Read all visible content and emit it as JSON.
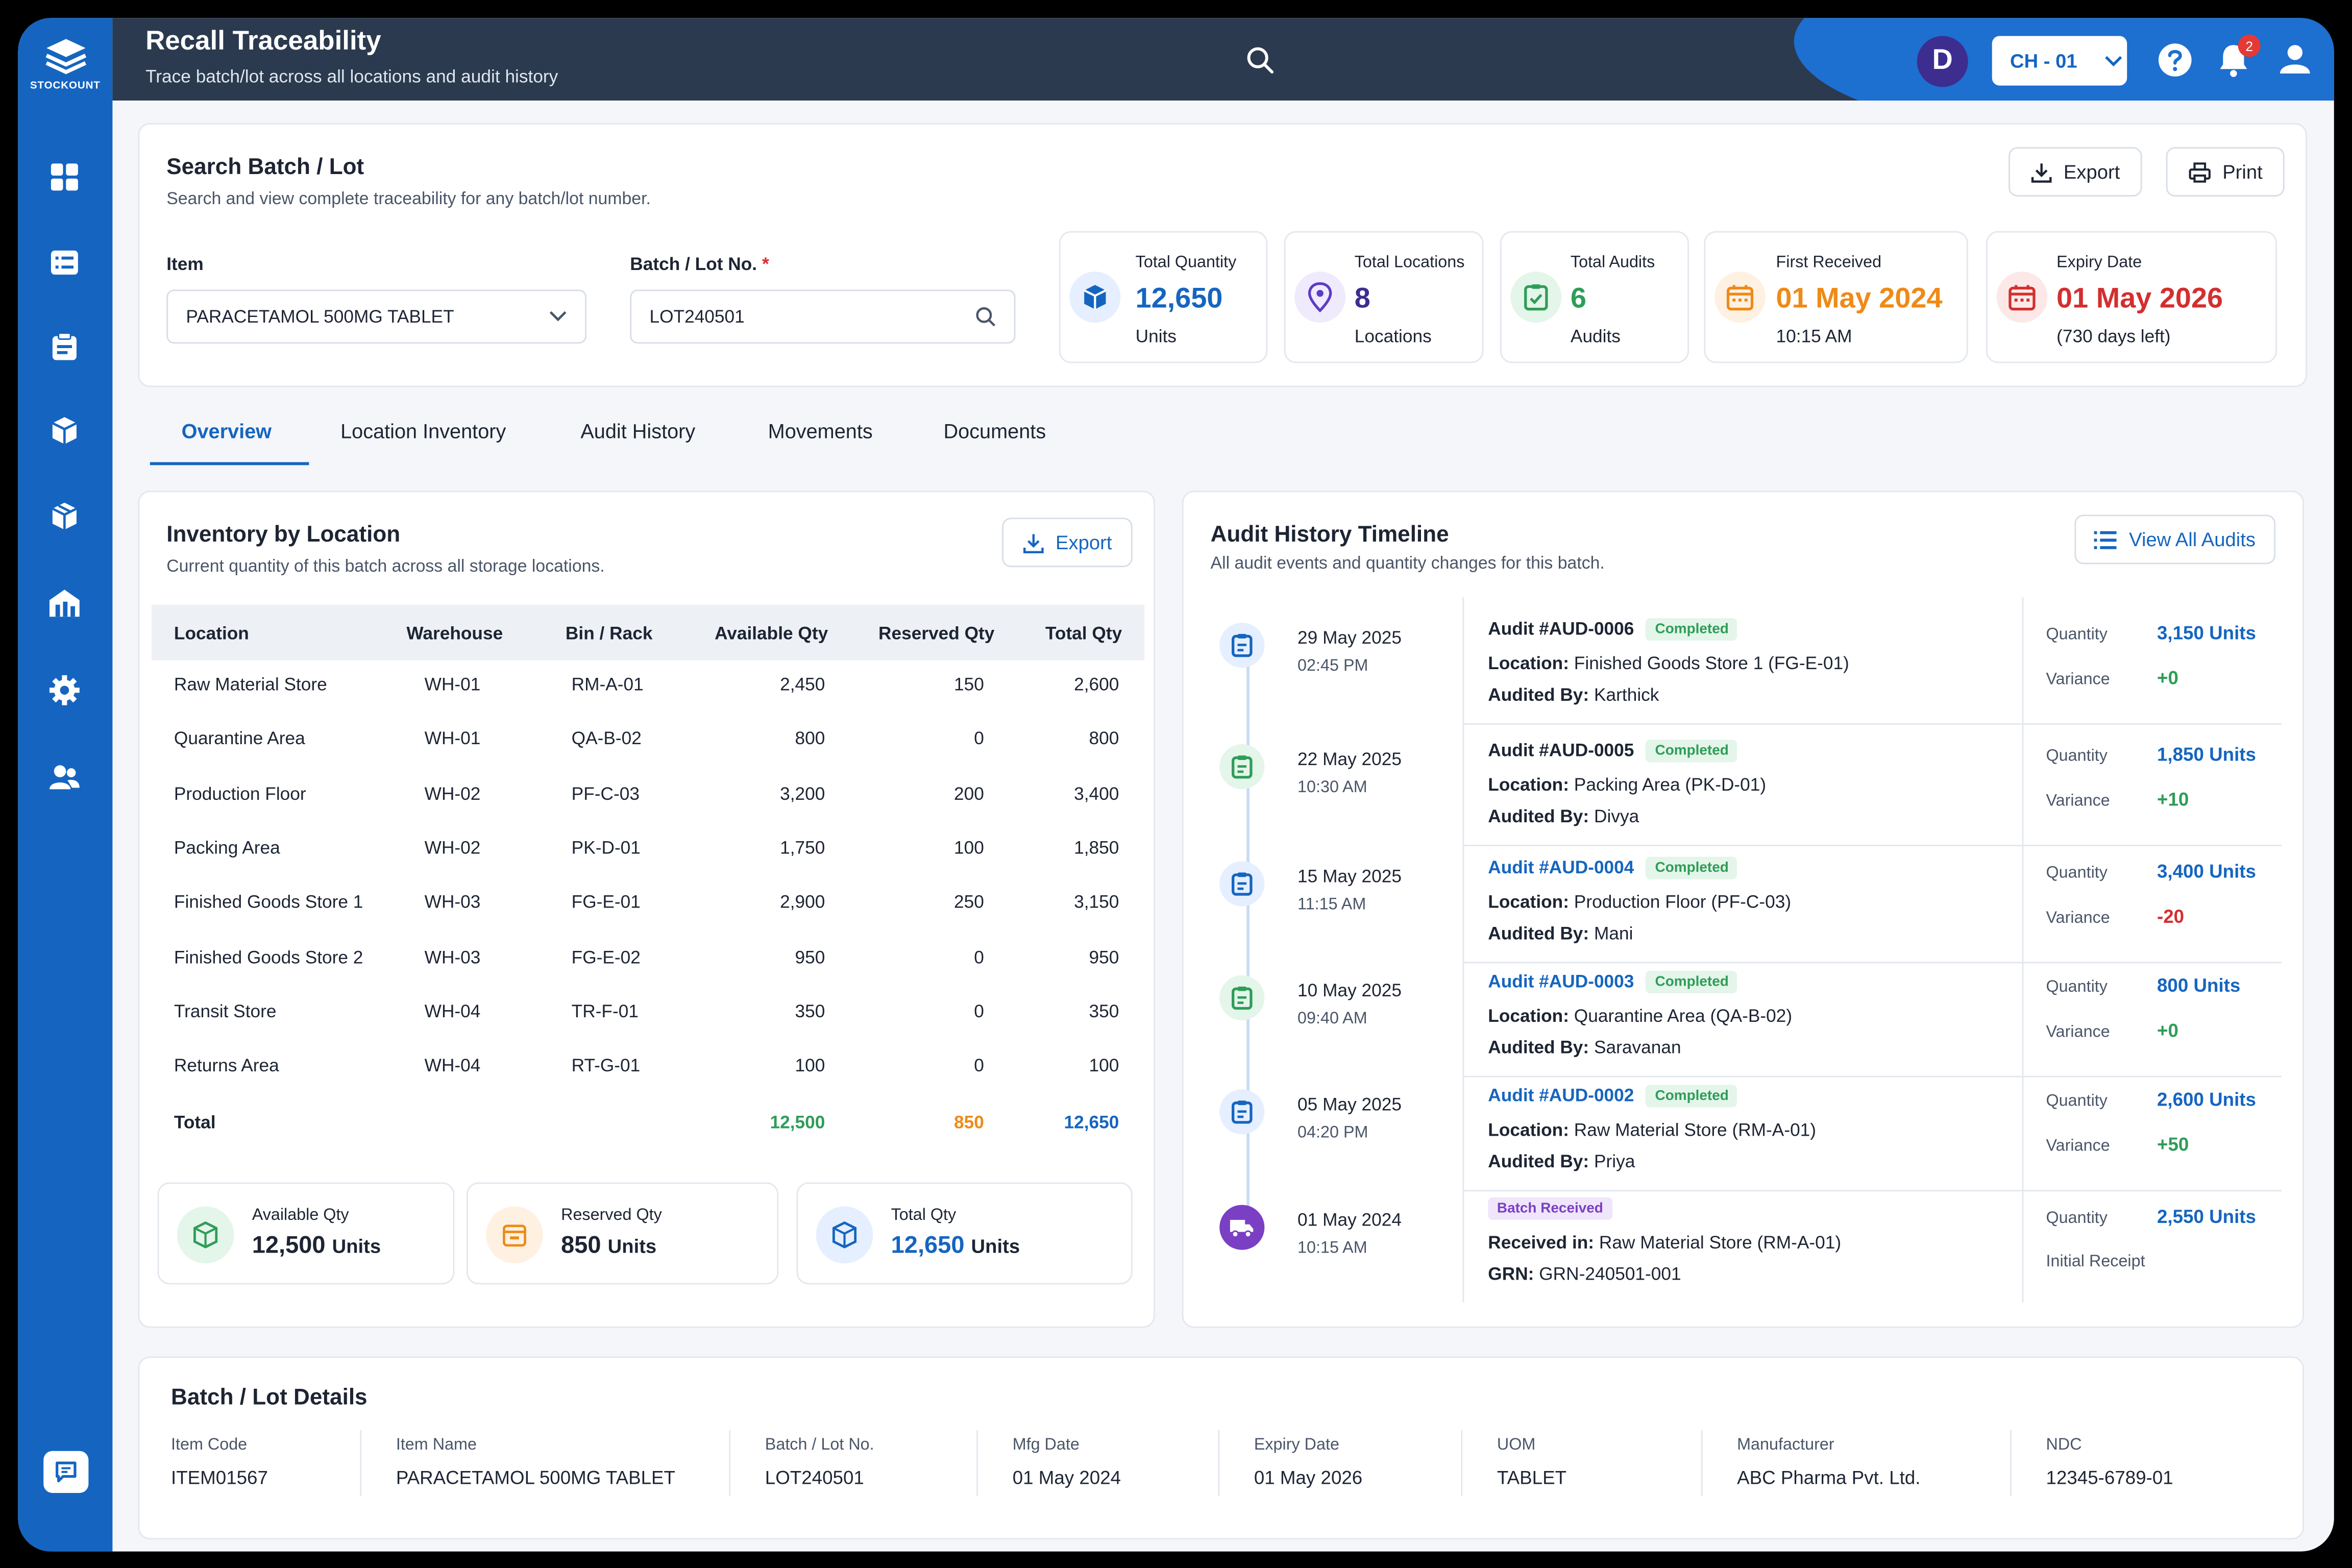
{
  "brand": {
    "name": "STOCKOUNT"
  },
  "header": {
    "title": "Recall Traceability",
    "subtitle": "Trace batch/lot across all locations and audit history",
    "avatar_initial": "D",
    "branch": "CH - 01",
    "notification_count": "2"
  },
  "sidebar": {
    "items": [
      {
        "icon": "dashboard-icon"
      },
      {
        "icon": "list-icon"
      },
      {
        "icon": "clipboard-icon"
      },
      {
        "icon": "box-icon"
      },
      {
        "icon": "package-icon"
      },
      {
        "icon": "warehouse-icon"
      },
      {
        "icon": "settings-icon"
      },
      {
        "icon": "users-icon"
      }
    ],
    "chat_icon": "chat-icon"
  },
  "search": {
    "title": "Search Batch / Lot",
    "subtitle": "Search and view complete traceability for any batch/lot number.",
    "export_label": "Export",
    "print_label": "Print",
    "item_label": "Item",
    "item_value": "PARACETAMOL 500MG TABLET",
    "batch_label": "Batch / Lot No.",
    "required_mark": "*",
    "batch_value": "LOT240501"
  },
  "stats": [
    {
      "title": "Total Quantity",
      "value": "12,650",
      "unit": "Units",
      "color": "#1565c0"
    },
    {
      "title": "Total Locations",
      "value": "8",
      "unit": "Locations",
      "color": "#3c2d8f"
    },
    {
      "title": "Total Audits",
      "value": "6",
      "unit": "Audits",
      "color": "#2e9d57"
    },
    {
      "title": "First Received",
      "value": "01 May 2024",
      "unit": "10:15 AM",
      "color": "#ef8a17"
    },
    {
      "title": "Expiry Date",
      "value": "01 May 2026",
      "unit": "(730 days left)",
      "color": "#d32f2f"
    }
  ],
  "tabs": [
    {
      "label": "Overview"
    },
    {
      "label": "Location Inventory"
    },
    {
      "label": "Audit History"
    },
    {
      "label": "Movements"
    },
    {
      "label": "Documents"
    }
  ],
  "inventory": {
    "title": "Inventory by Location",
    "subtitle": "Current quantity of this batch across all storage locations.",
    "export_label": "Export",
    "columns": [
      "Location",
      "Warehouse",
      "Bin / Rack",
      "Available Qty",
      "Reserved Qty",
      "Total Qty"
    ],
    "rows": [
      [
        "Raw Material Store",
        "WH-01",
        "RM-A-01",
        "2,450",
        "150",
        "2,600"
      ],
      [
        "Quarantine Area",
        "WH-01",
        "QA-B-02",
        "800",
        "0",
        "800"
      ],
      [
        "Production Floor",
        "WH-02",
        "PF-C-03",
        "3,200",
        "200",
        "3,400"
      ],
      [
        "Packing Area",
        "WH-02",
        "PK-D-01",
        "1,750",
        "100",
        "1,850"
      ],
      [
        "Finished Goods Store 1",
        "WH-03",
        "FG-E-01",
        "2,900",
        "250",
        "3,150"
      ],
      [
        "Finished Goods Store 2",
        "WH-03",
        "FG-E-02",
        "950",
        "0",
        "950"
      ],
      [
        "Transit Store",
        "WH-04",
        "TR-F-01",
        "350",
        "0",
        "350"
      ],
      [
        "Returns Area",
        "WH-04",
        "RT-G-01",
        "100",
        "0",
        "100"
      ]
    ],
    "total_label": "Total",
    "total_available": "12,500",
    "total_reserved": "850",
    "total_qty": "12,650",
    "summary": [
      {
        "label": "Available Qty",
        "value": "12,500",
        "unit": "Units"
      },
      {
        "label": "Reserved Qty",
        "value": "850",
        "unit": "Units"
      },
      {
        "label": "Total Qty",
        "value": "12,650",
        "unit": "Units"
      }
    ]
  },
  "timeline": {
    "title": "Audit History Timeline",
    "subtitle": "All audit events and quantity changes for this batch.",
    "view_all_label": "View All Audits",
    "quantity_label": "Quantity",
    "variance_label": "Variance",
    "location_prefix": "Location:",
    "audited_prefix": "Audited By:",
    "events": [
      {
        "date": "29 May 2025",
        "time": "02:45 PM",
        "title": "Audit #AUD-0006",
        "status": "Completed",
        "location": "Finished Goods Store 1 (FG-E-01)",
        "by": "Karthick",
        "quantity": "3,150 Units",
        "variance": "+0"
      },
      {
        "date": "22 May 2025",
        "time": "10:30 AM",
        "title": "Audit #AUD-0005",
        "status": "Completed",
        "location": "Packing Area (PK-D-01)",
        "by": "Divya",
        "quantity": "1,850 Units",
        "variance": "+10"
      },
      {
        "date": "15 May 2025",
        "time": "11:15 AM",
        "title": "Audit #AUD-0004",
        "status": "Completed",
        "location": "Production Floor (PF-C-03)",
        "by": "Mani",
        "quantity": "3,400 Units",
        "variance": "-20"
      },
      {
        "date": "10 May 2025",
        "time": "09:40 AM",
        "title": "Audit #AUD-0003",
        "status": "Completed",
        "location": "Quarantine Area (QA-B-02)",
        "by": "Saravanan",
        "quantity": "800 Units",
        "variance": "+0"
      },
      {
        "date": "05 May 2025",
        "time": "04:20 PM",
        "title": "Audit #AUD-0002",
        "status": "Completed",
        "location": "Raw Material Store (RM-A-01)",
        "by": "Priya",
        "quantity": "2,600 Units",
        "variance": "+50"
      }
    ],
    "receipt": {
      "date": "01 May 2024",
      "time": "10:15 AM",
      "status": "Batch Received",
      "received_prefix": "Received in:",
      "received_in": "Raw Material Store (RM-A-01)",
      "grn_prefix": "GRN:",
      "grn": "GRN-240501-001",
      "quantity": "2,550 Units",
      "note": "Initial Receipt"
    }
  },
  "details": {
    "title": "Batch / Lot Details",
    "fields": [
      {
        "label": "Item Code",
        "value": "ITEM01567"
      },
      {
        "label": "Item Name",
        "value": "PARACETAMOL 500MG TABLET"
      },
      {
        "label": "Batch / Lot No.",
        "value": "LOT240501"
      },
      {
        "label": "Mfg Date",
        "value": "01 May 2024"
      },
      {
        "label": "Expiry Date",
        "value": "01 May 2026"
      },
      {
        "label": "UOM",
        "value": "TABLET"
      },
      {
        "label": "Manufacturer",
        "value": "ABC Pharma Pvt. Ltd."
      },
      {
        "label": "NDC",
        "value": "12345-6789-01"
      }
    ]
  },
  "colors": {
    "primary": "#1565c0",
    "topbar": "#2b3a4e",
    "green": "#2e9d57",
    "orange": "#ef8a17",
    "red": "#d32f2f",
    "purple": "#7b3fc4"
  }
}
